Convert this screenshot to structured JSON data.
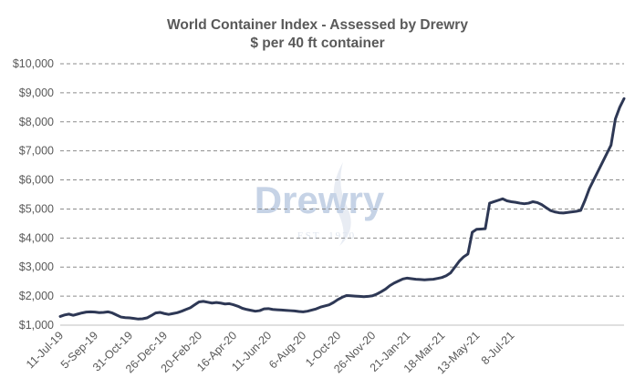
{
  "chart_data": {
    "type": "line",
    "title": "World Container Index - Assessed by Drewry",
    "subtitle": "$ per 40 ft container",
    "watermark": {
      "brand": "Drewry",
      "est": "EST. 1970"
    },
    "ylim": [
      1000,
      10000
    ],
    "y_ticks": [
      "$1,000",
      "$2,000",
      "$3,000",
      "$4,000",
      "$5,000",
      "$6,000",
      "$7,000",
      "$8,000",
      "$9,000",
      "$10,000"
    ],
    "y_tick_values": [
      1000,
      2000,
      3000,
      4000,
      5000,
      6000,
      7000,
      8000,
      9000,
      10000
    ],
    "x_tick_labels": [
      "11-Jul-19",
      "5-Sep-19",
      "31-Oct-19",
      "26-Dec-19",
      "20-Feb-20",
      "16-Apr-20",
      "11-Jun-20",
      "6-Aug-20",
      "1-Oct-20",
      "26-Nov-20",
      "21-Jan-21",
      "18-Mar-21",
      "13-May-21",
      "8-Jul-21"
    ],
    "x_tick_weeks": [
      0,
      8,
      16,
      24,
      32,
      40,
      48,
      56,
      64,
      72,
      80,
      88,
      96,
      104
    ],
    "grid": "horizontal dashed",
    "line_color": "#2e3855",
    "series": [
      {
        "values": [
          1300,
          1350,
          1380,
          1340,
          1380,
          1420,
          1450,
          1460,
          1450,
          1430,
          1440,
          1460,
          1420,
          1350,
          1280,
          1260,
          1250,
          1230,
          1210,
          1220,
          1250,
          1330,
          1420,
          1440,
          1400,
          1370,
          1400,
          1430,
          1480,
          1540,
          1600,
          1700,
          1800,
          1820,
          1790,
          1760,
          1780,
          1760,
          1730,
          1740,
          1700,
          1650,
          1580,
          1540,
          1510,
          1480,
          1500,
          1560,
          1570,
          1540,
          1530,
          1520,
          1510,
          1500,
          1490,
          1470,
          1460,
          1480,
          1520,
          1560,
          1620,
          1660,
          1700,
          1780,
          1880,
          1960,
          2020,
          2010,
          2000,
          1990,
          1980,
          1990,
          2010,
          2070,
          2150,
          2240,
          2360,
          2450,
          2520,
          2590,
          2620,
          2600,
          2580,
          2570,
          2560,
          2570,
          2580,
          2610,
          2640,
          2700,
          2800,
          3000,
          3200,
          3350,
          3450,
          4200,
          4300,
          4310,
          4320,
          5200,
          5250,
          5300,
          5350,
          5280,
          5250,
          5230,
          5200,
          5180,
          5200,
          5250,
          5220,
          5150,
          5050,
          4950,
          4900,
          4870,
          4860,
          4880,
          4900,
          4920,
          4950,
          5300,
          5700,
          6000,
          6300,
          6600,
          6900,
          7200,
          8100,
          8500,
          8800
        ]
      }
    ]
  }
}
